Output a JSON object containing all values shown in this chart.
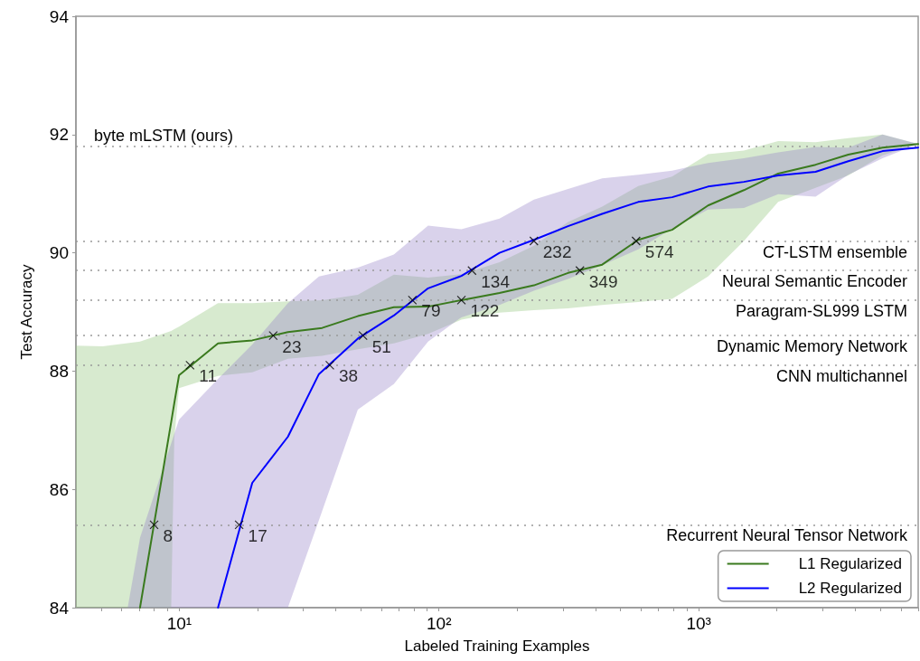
{
  "chart_data": {
    "type": "line",
    "xlabel": "Labeled Training Examples",
    "ylabel": "Test Accuracy",
    "log": "x",
    "xlim": [
      4,
      7000
    ],
    "ylim": [
      84,
      94
    ],
    "xticks": [
      {
        "value": 5,
        "label": null
      },
      {
        "value": 6,
        "label": null
      },
      {
        "value": 7,
        "label": null
      },
      {
        "value": 8,
        "label": null
      },
      {
        "value": 9,
        "label": null
      },
      {
        "value": 10,
        "label": "10¹"
      },
      {
        "value": 20,
        "label": null
      },
      {
        "value": 30,
        "label": null
      },
      {
        "value": 40,
        "label": null
      },
      {
        "value": 50,
        "label": null
      },
      {
        "value": 60,
        "label": null
      },
      {
        "value": 70,
        "label": null
      },
      {
        "value": 80,
        "label": null
      },
      {
        "value": 90,
        "label": null
      },
      {
        "value": 100,
        "label": "10²"
      },
      {
        "value": 200,
        "label": null
      },
      {
        "value": 300,
        "label": null
      },
      {
        "value": 400,
        "label": null
      },
      {
        "value": 500,
        "label": null
      },
      {
        "value": 600,
        "label": null
      },
      {
        "value": 700,
        "label": null
      },
      {
        "value": 800,
        "label": null
      },
      {
        "value": 900,
        "label": null
      },
      {
        "value": 1000,
        "label": "10³"
      },
      {
        "value": 2000,
        "label": null
      },
      {
        "value": 3000,
        "label": null
      },
      {
        "value": 4000,
        "label": null
      },
      {
        "value": 5000,
        "label": null
      },
      {
        "value": 6000,
        "label": null
      },
      {
        "value": 7000,
        "label": null
      }
    ],
    "yticks": [
      84,
      86,
      88,
      90,
      92,
      94
    ],
    "legend": "bottom right",
    "series": [
      {
        "name": "L1 Regularized",
        "color": "#3a7a1e",
        "x": [
          4,
          5.07,
          7.06,
          9.31,
          9.57,
          9.98,
          14.1,
          19.1,
          26.2,
          35.5,
          48.7,
          67,
          90.8,
          122,
          171,
          232,
          314,
          425,
          585,
          790,
          1086,
          1493,
          2023,
          2818,
          3767,
          5105,
          7000
        ],
        "values": [
          null,
          null,
          84.0,
          87.14,
          87.46,
          87.93,
          88.47,
          88.52,
          88.66,
          88.73,
          88.93,
          89.08,
          89.09,
          89.2,
          89.32,
          89.45,
          89.66,
          89.8,
          90.22,
          90.39,
          90.8,
          91.06,
          91.34,
          91.49,
          91.66,
          91.78,
          91.84
        ],
        "upper": [
          88.43,
          88.42,
          88.5,
          88.68,
          88.71,
          88.75,
          89.15,
          89.15,
          89.18,
          89.2,
          89.29,
          89.63,
          89.58,
          89.64,
          89.84,
          90.12,
          90.52,
          90.78,
          91.13,
          91.29,
          91.67,
          91.73,
          91.89,
          91.87,
          91.94,
          92.0,
          91.84
        ],
        "lower": [
          84.0,
          84.0,
          84.0,
          84.0,
          86.87,
          87.71,
          87.92,
          87.98,
          88.21,
          88.26,
          88.37,
          88.47,
          88.63,
          88.87,
          88.99,
          89.03,
          89.06,
          89.12,
          89.17,
          89.22,
          89.6,
          90.2,
          90.86,
          91.1,
          91.31,
          91.65,
          91.84
        ]
      },
      {
        "name": "L2 Regularized",
        "color": "#0000ff",
        "x": [
          6.33,
          7.06,
          9.98,
          14.1,
          19.1,
          26.2,
          34.5,
          48.7,
          67,
          90.8,
          122,
          171,
          232,
          314,
          425,
          585,
          790,
          1086,
          1493,
          2023,
          2818,
          3767,
          5105,
          7000
        ],
        "values": [
          null,
          null,
          null,
          84.0,
          86.11,
          86.89,
          87.95,
          88.55,
          88.94,
          89.4,
          89.61,
          90.0,
          90.22,
          90.45,
          90.66,
          90.86,
          90.94,
          91.12,
          91.2,
          91.31,
          91.37,
          91.55,
          91.72,
          91.78
        ],
        "upper": [
          84.0,
          85.18,
          87.18,
          87.87,
          88.45,
          89.15,
          89.6,
          89.75,
          89.97,
          90.46,
          90.4,
          90.58,
          90.9,
          91.08,
          91.26,
          91.32,
          91.39,
          91.52,
          91.6,
          91.7,
          91.79,
          91.78,
          92.0,
          91.84
        ],
        "lower": [
          84.0,
          84.0,
          84.0,
          84.0,
          84.0,
          84.0,
          85.48,
          87.35,
          87.78,
          88.5,
          88.91,
          89.12,
          89.36,
          89.56,
          89.79,
          90.06,
          90.41,
          90.73,
          90.76,
          90.99,
          90.95,
          91.32,
          91.6,
          91.84
        ]
      }
    ],
    "ref_lines": [
      {
        "axis": "y",
        "value": 91.8,
        "label": "byte mLSTM (ours)"
      },
      {
        "axis": "y",
        "value": 90.2,
        "label": "CT-LSTM ensemble"
      },
      {
        "axis": "y",
        "value": 89.7,
        "label": "Neural Semantic Encoder"
      },
      {
        "axis": "y",
        "value": 89.2,
        "label": "Paragram-SL999 LSTM"
      },
      {
        "axis": "y",
        "value": 88.6,
        "label": "Dynamic Memory Network"
      },
      {
        "axis": "y",
        "value": 88.1,
        "label": "CNN multichannel"
      },
      {
        "axis": "y",
        "value": 85.4,
        "label": "Recurrent Neural Tensor Network"
      }
    ],
    "annotations": [
      {
        "text": "8",
        "x": 8,
        "y": 85.4
      },
      {
        "text": "11",
        "x": 11,
        "y": 88.1
      },
      {
        "text": "23",
        "x": 23,
        "y": 88.6
      },
      {
        "text": "79",
        "x": 79,
        "y": 89.2
      },
      {
        "text": "122",
        "x": 122,
        "y": 89.2
      },
      {
        "text": "349",
        "x": 349,
        "y": 89.7
      },
      {
        "text": "574",
        "x": 574,
        "y": 90.2
      },
      {
        "text": "17",
        "x": 17,
        "y": 85.4
      },
      {
        "text": "38",
        "x": 38,
        "y": 88.1
      },
      {
        "text": "51",
        "x": 51,
        "y": 88.6
      },
      {
        "text": "134",
        "x": 134,
        "y": 89.7
      },
      {
        "text": "232",
        "x": 232,
        "y": 90.2
      }
    ]
  }
}
